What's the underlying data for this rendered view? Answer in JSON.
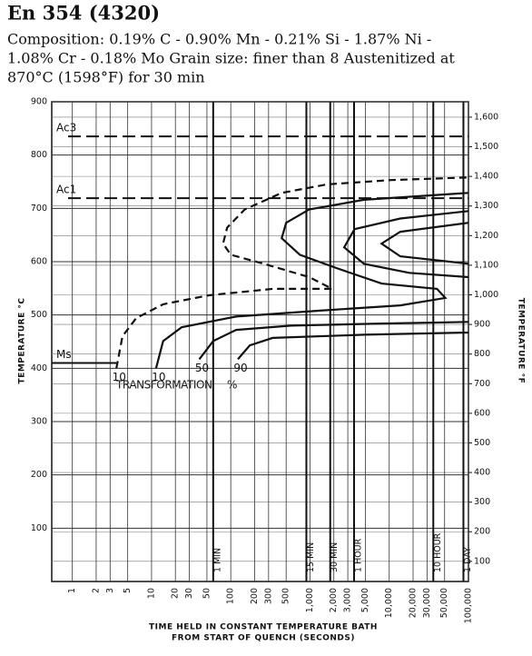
{
  "chart_data": {
    "type": "line",
    "title": "En 354 (4320)",
    "subtitle_lines": [
      "Composition: 0.19% C - 0.90% Mn - 0.21% Si - 1.87% Ni -",
      "1.08% Cr - 0.18% Mo Grain size: finer than 8 Austenitized at",
      "870°C (1598°F) for 30 min"
    ],
    "ylabel": "TEMPERATURE °C",
    "y2label": "TEMPERATURE °F",
    "xlabel_lines": [
      "TIME HELD IN CONSTANT TEMPERATURE BATH",
      "FROM START OF QUENCH (SECONDS)"
    ],
    "annotation": "TRANSFORMATION",
    "annotation_unit": "%",
    "log_x": true,
    "grid": true,
    "xlim": [
      0.55,
      100000
    ],
    "xticks": [
      1,
      2,
      3,
      5,
      10,
      20,
      30,
      50,
      100,
      200,
      300,
      500,
      {
        "value": 1000,
        "label": "1,000"
      },
      {
        "value": 2000,
        "label": "2,000"
      },
      {
        "value": 3000,
        "label": "3,000"
      },
      {
        "value": 5000,
        "label": "5,000"
      },
      {
        "value": 10000,
        "label": "10,000"
      },
      {
        "value": 20000,
        "label": "20,000"
      },
      {
        "value": 30000,
        "label": "30,000"
      },
      {
        "value": 50000,
        "label": "50,000"
      },
      {
        "value": 100000,
        "label": "100,000"
      }
    ],
    "ylim": [
      0,
      900
    ],
    "yticks": [
      100,
      200,
      300,
      400,
      500,
      600,
      700,
      800,
      900
    ],
    "y2lim": [
      32,
      1652
    ],
    "y2ticks": [
      100,
      200,
      300,
      400,
      500,
      600,
      700,
      800,
      900,
      {
        "value": 1000,
        "label": "1,000"
      },
      {
        "value": 1100,
        "label": "1,100"
      },
      {
        "value": 1200,
        "label": "1,200"
      },
      {
        "value": 1300,
        "label": "1,300"
      },
      {
        "value": 1400,
        "label": "1,400"
      },
      {
        "value": 1500,
        "label": "1,500"
      },
      {
        "value": 1600,
        "label": "1,600"
      }
    ],
    "reference_lines": [
      {
        "label": "Ac3",
        "value": 835,
        "style": "dashed"
      },
      {
        "label": "Ac1",
        "value": 719,
        "style": "dashed"
      },
      {
        "label": "Ms",
        "value": 410,
        "style": "solid"
      }
    ],
    "time_markers": [
      {
        "label": "1 MIN",
        "value": 60
      },
      {
        "label": "15 MIN",
        "value": 900
      },
      {
        "label": "30 MIN",
        "value": 1800
      },
      {
        "label": "1 HOUR",
        "value": 3600
      },
      {
        "label": "10 HOUR",
        "value": 36000
      },
      {
        "label": "1 DAY",
        "value": 86400
      }
    ],
    "series": [
      {
        "name": "10",
        "color": "#111111",
        "style": "dashed",
        "x": [
          3.6,
          4.3,
          6.4,
          14,
          53,
          340,
          1900,
          980,
          260,
          100,
          80,
          90,
          150,
          440,
          1650,
          10500,
          100000
        ],
        "values": [
          400,
          460,
          494,
          520,
          537,
          549,
          549,
          571,
          596,
          613,
          634,
          664,
          698,
          729,
          745,
          753,
          758
        ]
      },
      {
        "name": "10",
        "color": "#111111",
        "style": "solid",
        "x": [
          11.4,
          14,
          24,
          117,
          1270,
          13800,
          51000,
          40000,
          8000,
          2150,
          745,
          440,
          500,
          975,
          4800,
          100000
        ],
        "values": [
          400,
          451,
          477,
          497,
          508,
          518,
          532,
          549,
          559,
          588,
          613,
          644,
          673,
          698,
          716,
          729
        ]
      },
      {
        "name": "50",
        "color": "#111111",
        "style": "solid",
        "x": [
          40,
          60,
          117,
          575,
          8000,
          100000,
          null,
          100000,
          17900,
          4800,
          2700,
          3650,
          13800,
          100000
        ],
        "values": [
          417,
          451,
          472,
          480,
          484,
          487,
          null,
          571,
          579,
          596,
          627,
          661,
          681,
          695
        ]
      },
      {
        "name": "90",
        "color": "#111111",
        "style": "solid",
        "x": [
          123,
          174,
          338,
          4800,
          100000,
          null,
          100000,
          13800,
          8000,
          13800,
          100000
        ],
        "values": [
          417,
          443,
          457,
          463,
          467,
          null,
          596,
          610,
          634,
          656,
          673
        ]
      }
    ]
  }
}
